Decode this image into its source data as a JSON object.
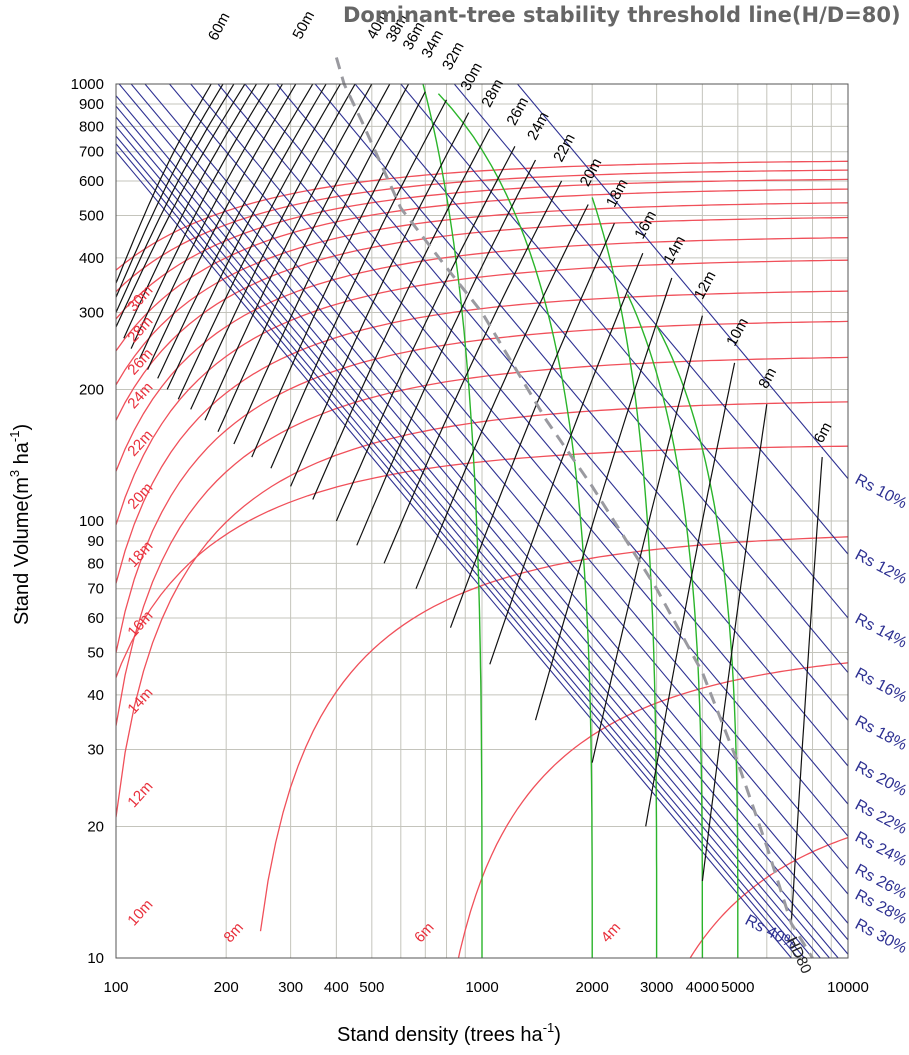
{
  "chart_data": {
    "type": "line",
    "title": "Dominant-tree stability threshold line(H/D=80)",
    "xlabel": "Stand density (trees  ha",
    "xlabel_sup": "-1",
    "xlabel_end": ")",
    "ylabel": "Stand Volume(m",
    "ylabel_sup1": "3",
    "ylabel_mid": " ha",
    "ylabel_sup2": "-1",
    "ylabel_end": ")",
    "x_scale": "log",
    "y_scale": "log",
    "xlim": [
      100,
      10000
    ],
    "ylim": [
      10,
      1000
    ],
    "grid": true,
    "x_ticks": [
      {
        "value": 100,
        "label": "100",
        "major": true
      },
      {
        "value": 200,
        "label": "200",
        "major": false
      },
      {
        "value": 300,
        "label": "300",
        "major": false
      },
      {
        "value": 400,
        "label": "400",
        "major": false
      },
      {
        "value": 500,
        "label": "500",
        "major": false
      },
      {
        "value": 1000,
        "label": "1000",
        "major": true
      },
      {
        "value": 2000,
        "label": "2000",
        "major": false
      },
      {
        "value": 3000,
        "label": "3000",
        "major": false
      },
      {
        "value": 4000,
        "label": "4000",
        "major": false
      },
      {
        "value": 5000,
        "label": "5000",
        "major": false
      },
      {
        "value": 10000,
        "label": "10000",
        "major": true
      }
    ],
    "x_grid": [
      100,
      200,
      300,
      400,
      500,
      600,
      700,
      800,
      900,
      1000,
      2000,
      3000,
      4000,
      5000,
      6000,
      7000,
      8000,
      9000,
      10000
    ],
    "y_ticks": [
      {
        "value": 1000,
        "label": "1000",
        "major": true
      },
      {
        "value": 900,
        "label": "900",
        "major": false
      },
      {
        "value": 800,
        "label": "800",
        "major": false
      },
      {
        "value": 700,
        "label": "700",
        "major": false
      },
      {
        "value": 600,
        "label": "600",
        "major": false
      },
      {
        "value": 500,
        "label": "500",
        "major": false
      },
      {
        "value": 400,
        "label": "400",
        "major": false
      },
      {
        "value": 300,
        "label": "300",
        "major": false
      },
      {
        "value": 200,
        "label": "200",
        "major": false
      },
      {
        "value": 100,
        "label": "100",
        "major": true
      },
      {
        "value": 90,
        "label": "90",
        "major": false
      },
      {
        "value": 80,
        "label": "80",
        "major": false
      },
      {
        "value": 70,
        "label": "70",
        "major": false
      },
      {
        "value": 60,
        "label": "60",
        "major": false
      },
      {
        "value": 50,
        "label": "50",
        "major": false
      },
      {
        "value": 40,
        "label": "40",
        "major": false
      },
      {
        "value": 30,
        "label": "30",
        "major": false
      },
      {
        "value": 20,
        "label": "20",
        "major": false
      },
      {
        "value": 10,
        "label": "10",
        "major": true
      }
    ],
    "colors": {
      "relative_spacing": "#2e3192",
      "dominant_height": "#111111",
      "mean_height": "#f0505a",
      "self_thinning": "#2bb52b",
      "threshold": "#9a9aa0",
      "grid": "#c4c4bc"
    },
    "relative_spacing_lines": [
      {
        "label": "Rs  10%",
        "N": 10000,
        "V": 125
      },
      {
        "label": "Rs  12%",
        "N": 10000,
        "V": 84
      },
      {
        "label": "Rs  14%",
        "N": 10000,
        "V": 60
      },
      {
        "label": "Rs  16%",
        "N": 10000,
        "V": 45
      },
      {
        "label": "Rs  18%",
        "N": 10000,
        "V": 35
      },
      {
        "label": "Rs  20%",
        "N": 10000,
        "V": 27.5
      },
      {
        "label": "Rs  22%",
        "N": 10000,
        "V": 22.5
      },
      {
        "label": "Rs  24%",
        "N": 10000,
        "V": 19
      },
      {
        "label": "Rs  26%",
        "N": 10000,
        "V": 16
      },
      {
        "label": "Rs  28%",
        "N": 10000,
        "V": 14
      },
      {
        "label": "Rs  30%",
        "N": 10000,
        "V": 12
      },
      {
        "label": "",
        "N": 10000,
        "V": 11
      },
      {
        "label": "",
        "N": 10000,
        "V": 10.2
      },
      {
        "label": "",
        "N": 9400,
        "V": 10
      },
      {
        "label": "",
        "N": 8900,
        "V": 10
      },
      {
        "label": "",
        "N": 8400,
        "V": 10
      },
      {
        "label": "",
        "N": 8000,
        "V": 10
      },
      {
        "label": "",
        "N": 7600,
        "V": 10
      },
      {
        "label": "",
        "N": 7300,
        "V": 10
      },
      {
        "label": "",
        "N": 7000,
        "V": 10
      }
    ],
    "rs_extra_labels": [
      {
        "label": "Rs  40%",
        "N": 5200,
        "V": 12
      }
    ],
    "dominant_height_lines": [
      {
        "label": "6m",
        "start": [
          7000,
          12
        ],
        "end": [
          8500,
          140
        ]
      },
      {
        "label": "8m",
        "start": [
          4000,
          15
        ],
        "end": [
          6000,
          185
        ]
      },
      {
        "label": "10m",
        "start": [
          2800,
          20
        ],
        "end": [
          4900,
          230
        ]
      },
      {
        "label": "12m",
        "start": [
          2000,
          28
        ],
        "end": [
          4000,
          295
        ]
      },
      {
        "label": "14m",
        "start": [
          1400,
          35
        ],
        "end": [
          3300,
          360
        ]
      },
      {
        "label": "16m",
        "start": [
          1050,
          47
        ],
        "end": [
          2750,
          410
        ]
      },
      {
        "label": "18m",
        "start": [
          820,
          57
        ],
        "end": [
          2300,
          480
        ]
      },
      {
        "label": "20m",
        "start": [
          660,
          70
        ],
        "end": [
          1950,
          530
        ]
      },
      {
        "label": "22m",
        "start": [
          540,
          80
        ],
        "end": [
          1650,
          600
        ]
      },
      {
        "label": "24m",
        "start": [
          455,
          88
        ],
        "end": [
          1400,
          670
        ]
      },
      {
        "label": "26m",
        "start": [
          400,
          100
        ],
        "end": [
          1230,
          720
        ]
      },
      {
        "label": "28m",
        "start": [
          345,
          112
        ],
        "end": [
          1050,
          790
        ]
      },
      {
        "label": "30m",
        "start": [
          300,
          120
        ],
        "end": [
          920,
          860
        ]
      },
      {
        "label": "32m",
        "start": [
          265,
          132
        ],
        "end": [
          800,
          920
        ]
      },
      {
        "label": "34m",
        "start": [
          235,
          140
        ],
        "end": [
          700,
          960
        ]
      },
      {
        "label": "36m",
        "start": [
          210,
          150
        ],
        "end": [
          630,
          1000
        ]
      },
      {
        "label": "38m",
        "start": [
          190,
          160
        ],
        "end": [
          560,
          1000
        ]
      },
      {
        "label": "40m",
        "start": [
          175,
          170
        ],
        "end": [
          500,
          1000
        ]
      },
      {
        "label": "",
        "start": [
          160,
          180
        ],
        "end": [
          450,
          1000
        ]
      },
      {
        "label": "",
        "start": [
          148,
          190
        ],
        "end": [
          410,
          1000
        ]
      },
      {
        "label": "",
        "start": [
          138,
          200
        ],
        "end": [
          375,
          1000
        ]
      },
      {
        "label": "",
        "start": [
          130,
          212
        ],
        "end": [
          345,
          1000
        ]
      },
      {
        "label": "50m",
        "start": [
          122,
          222
        ],
        "end": [
          310,
          1000
        ]
      },
      {
        "label": "",
        "start": [
          116,
          235
        ],
        "end": [
          285,
          1000
        ]
      },
      {
        "label": "",
        "start": [
          110,
          248
        ],
        "end": [
          262,
          1000
        ]
      },
      {
        "label": "",
        "start": [
          105,
          262
        ],
        "end": [
          242,
          1000
        ]
      },
      {
        "label": "",
        "start": [
          100,
          278
        ],
        "end": [
          225,
          1000
        ]
      },
      {
        "label": "",
        "start": [
          100,
          300
        ],
        "end": [
          210,
          1000
        ]
      },
      {
        "label": "",
        "start": [
          100,
          325
        ],
        "end": [
          196,
          1000
        ]
      },
      {
        "label": "60m",
        "start": [
          100,
          350
        ],
        "end": [
          182,
          1000
        ]
      }
    ],
    "dominant_label_positions": {
      "6m": [
        8500,
        150
      ],
      "8m": [
        6000,
        200
      ],
      "10m": [
        4900,
        250
      ],
      "12m": [
        4000,
        320
      ],
      "14m": [
        3300,
        385
      ],
      "16m": [
        2750,
        440
      ],
      "18m": [
        2300,
        520
      ],
      "20m": [
        1950,
        580
      ],
      "22m": [
        1650,
        660
      ],
      "24m": [
        1400,
        740
      ],
      "26m": [
        1230,
        800
      ],
      "28m": [
        1050,
        880
      ],
      "30m": [
        920,
        960
      ],
      "32m": [
        820,
        1070
      ],
      "34m": [
        720,
        1140
      ],
      "36m": [
        640,
        1190
      ],
      "38m": [
        575,
        1240
      ],
      "40m": [
        510,
        1260
      ],
      "50m": [
        320,
        1260
      ],
      "60m": [
        188,
        1250
      ]
    },
    "mean_height_lines": [
      {
        "label": "4m",
        "N0": 2100,
        "A": 25
      },
      {
        "label": "6m",
        "N0": 680,
        "A": 52
      },
      {
        "label": "8m",
        "N0": 215,
        "A": 95
      },
      {
        "label": "10m",
        "N0": 68,
        "A": 150
      },
      {
        "label": "12m",
        "N0": 100,
        "A": 190,
        "start": [
          100,
          21
        ]
      },
      {
        "label": "14m",
        "N0": 100,
        "A": 240,
        "start": [
          100,
          34
        ]
      },
      {
        "label": "16m",
        "N0": 100,
        "A": 290,
        "start": [
          100,
          50
        ]
      },
      {
        "label": "18m",
        "N0": 100,
        "A": 340,
        "start": [
          100,
          72
        ]
      },
      {
        "label": "20m",
        "N0": 100,
        "A": 400,
        "start": [
          100,
          98
        ]
      },
      {
        "label": "22m",
        "N0": 100,
        "A": 450,
        "start": [
          100,
          130
        ]
      },
      {
        "label": "24m",
        "N0": 100,
        "A": 500,
        "start": [
          100,
          170
        ]
      },
      {
        "label": "26m",
        "N0": 100,
        "A": 540,
        "start": [
          100,
          205
        ]
      },
      {
        "label": "28m",
        "N0": 100,
        "A": 580,
        "start": [
          100,
          245
        ]
      },
      {
        "label": "30m",
        "N0": 100,
        "A": 610,
        "start": [
          100,
          290
        ]
      },
      {
        "label": "",
        "N0": 100,
        "A": 640,
        "start": [
          100,
          335
        ]
      },
      {
        "label": "",
        "N0": 100,
        "A": 670,
        "start": [
          100,
          375
        ]
      }
    ],
    "mean_label_positions": {
      "4m": [
        2200,
        10.8
      ],
      "6m": [
        680,
        10.8
      ],
      "8m": [
        205,
        10.8
      ],
      "10m": [
        112,
        11.8
      ],
      "12m": [
        112,
        22
      ],
      "14m": [
        112,
        36
      ],
      "16m": [
        112,
        54
      ],
      "18m": [
        112,
        78
      ],
      "20m": [
        112,
        106
      ],
      "22m": [
        112,
        140
      ],
      "24m": [
        112,
        180
      ],
      "26m": [
        112,
        215
      ],
      "28m": [
        112,
        255
      ],
      "30m": [
        112,
        300
      ]
    },
    "self_thinning_curves": [
      {
        "N_base": 1000,
        "top": [
          690,
          1000
        ]
      },
      {
        "N_base": 2000,
        "top": [
          760,
          950
        ]
      },
      {
        "N_base": 3000,
        "top": [
          2000,
          550
        ]
      },
      {
        "N_base": 4000,
        "top": [
          2500,
          330
        ]
      },
      {
        "N_base": 5000,
        "top": [
          3000,
          280
        ]
      }
    ],
    "threshold_line": {
      "label": "HD80",
      "points": [
        [
          400,
          1150
        ],
        [
          420,
          1000
        ],
        [
          470,
          820
        ],
        [
          600,
          520
        ],
        [
          800,
          380
        ],
        [
          1000,
          300
        ],
        [
          1500,
          170
        ],
        [
          2000,
          120
        ],
        [
          3000,
          70
        ],
        [
          4000,
          45
        ],
        [
          5000,
          28
        ],
        [
          6000,
          18
        ],
        [
          7000,
          12
        ],
        [
          8000,
          10
        ]
      ],
      "label_pos": [
        6800,
        11
      ]
    }
  }
}
